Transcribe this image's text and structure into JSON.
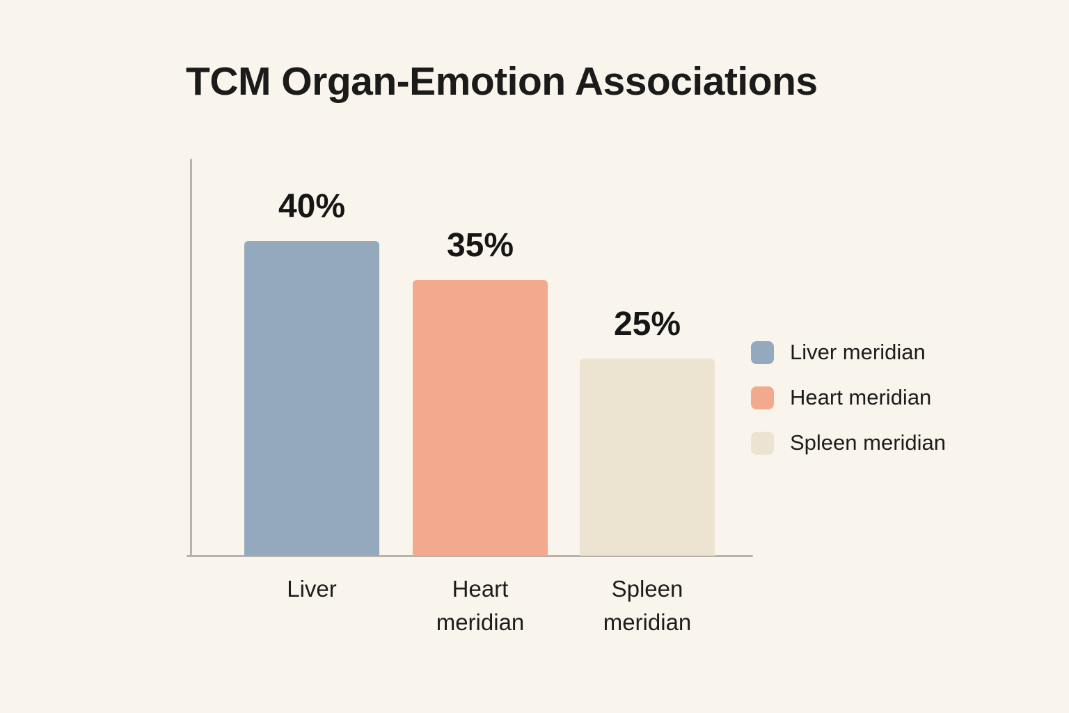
{
  "title": "TCM Organ-Emotion Associations",
  "chart_data": {
    "type": "bar",
    "title": "TCM Organ-Emotion Associations",
    "categories": [
      "Liver",
      "Heart meridian",
      "Spleen meridian"
    ],
    "values": [
      40,
      35,
      25
    ],
    "value_labels": [
      "40%",
      "35%",
      "25%"
    ],
    "colors": [
      "#94a9bd",
      "#f2a98d",
      "#ece3d1"
    ],
    "xlabel": "",
    "ylabel": "",
    "ylim": [
      0,
      50
    ],
    "grid": false,
    "axis_color": "#b6b3ac",
    "background_color": "#faf5ec",
    "legend": {
      "position": "right",
      "entries": [
        {
          "label": "Liver meridian",
          "color": "#94a9bd"
        },
        {
          "label": "Heart meridian",
          "color": "#f2a98d"
        },
        {
          "label": "Spleen meridian",
          "color": "#ece3d1"
        }
      ]
    }
  }
}
